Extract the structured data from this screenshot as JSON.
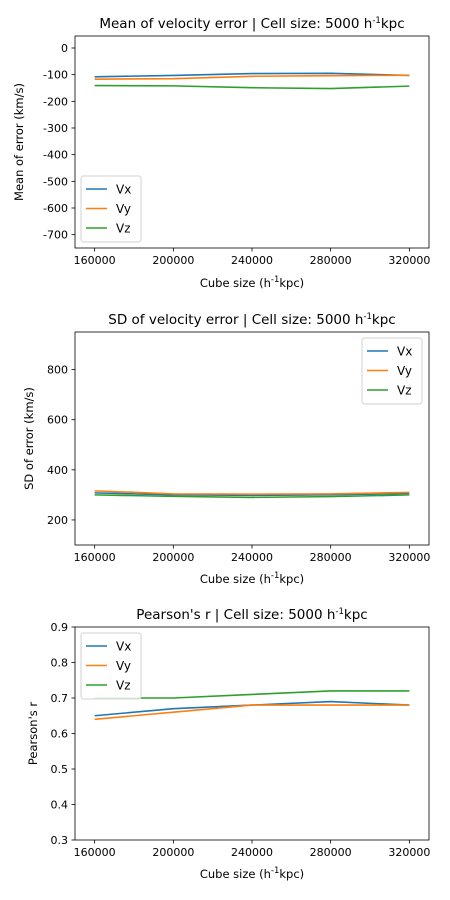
{
  "chart_data": [
    {
      "type": "line",
      "title": "Mean of velocity error | Cell size: 5000 h",
      "title_sup": "-1",
      "title_unit": "kpc",
      "xlabel": "Cube size (h",
      "xlabel_sup": "-1",
      "xlabel_unit": "kpc)",
      "ylabel": "Mean of error (km/s)",
      "x": [
        160000,
        200000,
        240000,
        280000,
        320000
      ],
      "xticks": [
        "160000",
        "200000",
        "240000",
        "280000",
        "320000"
      ],
      "yticks": [
        0,
        -100,
        -200,
        -300,
        -400,
        -500,
        -600,
        -700
      ],
      "ylim": [
        -750,
        45
      ],
      "legend": "lower-left",
      "series": [
        {
          "name": "Vx",
          "color": "#1f77b4",
          "values": [
            -108,
            -103,
            -96,
            -95,
            -103
          ]
        },
        {
          "name": "Vy",
          "color": "#ff7f0e",
          "values": [
            -117,
            -115,
            -106,
            -104,
            -102
          ]
        },
        {
          "name": "Vz",
          "color": "#2ca02c",
          "values": [
            -141,
            -142,
            -149,
            -152,
            -143
          ]
        }
      ]
    },
    {
      "type": "line",
      "title": "SD of velocity error | Cell size: 5000 h",
      "title_sup": "-1",
      "title_unit": "kpc",
      "xlabel": "Cube size (h",
      "xlabel_sup": "-1",
      "xlabel_unit": "kpc)",
      "ylabel": "SD of error (km/s)",
      "x": [
        160000,
        200000,
        240000,
        280000,
        320000
      ],
      "xticks": [
        "160000",
        "200000",
        "240000",
        "280000",
        "320000"
      ],
      "yticks": [
        200,
        400,
        600,
        800
      ],
      "ylim": [
        100,
        950
      ],
      "legend": "upper-right",
      "series": [
        {
          "name": "Vx",
          "color": "#1f77b4",
          "values": [
            308,
            300,
            298,
            300,
            306
          ]
        },
        {
          "name": "Vy",
          "color": "#ff7f0e",
          "values": [
            316,
            304,
            303,
            304,
            310
          ]
        },
        {
          "name": "Vz",
          "color": "#2ca02c",
          "values": [
            300,
            294,
            290,
            293,
            300
          ]
        }
      ]
    },
    {
      "type": "line",
      "title": "Pearson's r | Cell size: 5000 h",
      "title_sup": "-1",
      "title_unit": "kpc",
      "xlabel": "Cube size (h",
      "xlabel_sup": "-1",
      "xlabel_unit": "kpc)",
      "ylabel": "Pearson's r",
      "x": [
        160000,
        200000,
        240000,
        280000,
        320000
      ],
      "xticks": [
        "160000",
        "200000",
        "240000",
        "280000",
        "320000"
      ],
      "yticks": [
        0.3,
        0.4,
        0.5,
        0.6,
        0.7,
        0.8,
        0.9
      ],
      "ytick_labels": [
        "0.3",
        "0.4",
        "0.5",
        "0.6",
        "0.7",
        "0.8",
        "0.9"
      ],
      "ylim": [
        0.3,
        0.9
      ],
      "legend": "upper-left",
      "series": [
        {
          "name": "Vx",
          "color": "#1f77b4",
          "values": [
            0.65,
            0.67,
            0.68,
            0.69,
            0.68
          ]
        },
        {
          "name": "Vy",
          "color": "#ff7f0e",
          "values": [
            0.64,
            0.66,
            0.68,
            0.68,
            0.68
          ]
        },
        {
          "name": "Vz",
          "color": "#2ca02c",
          "values": [
            0.7,
            0.7,
            0.71,
            0.72,
            0.72
          ]
        }
      ]
    }
  ]
}
